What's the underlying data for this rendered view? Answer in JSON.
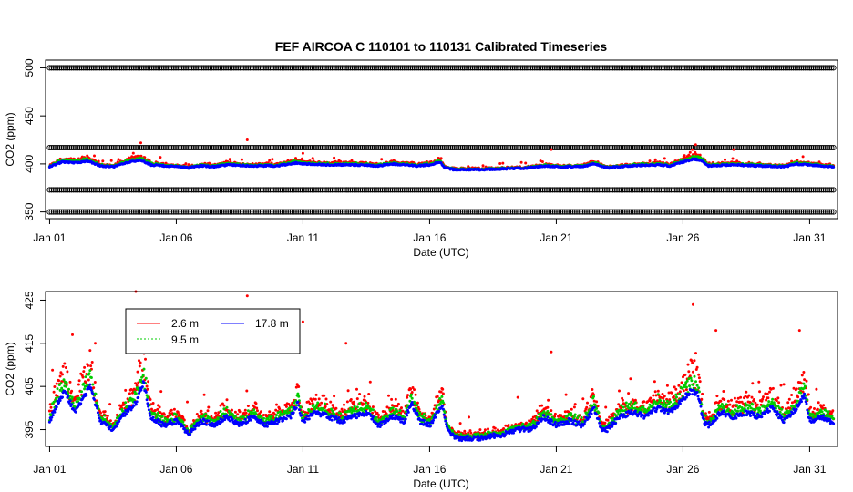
{
  "chart_data": [
    {
      "type": "scatter",
      "title": "FEF   AIRCOA  C    110101  to  110131   Calibrated Timeseries",
      "xlabel": "Date (UTC)",
      "ylabel": "CO2 (ppm)",
      "xlim": [
        "2011-01-01",
        "2011-01-32"
      ],
      "ylim": [
        350,
        500
      ],
      "x_tick_labels": [
        "Jan 01",
        "Jan 06",
        "Jan 11",
        "Jan 16",
        "Jan 21",
        "Jan 26",
        "Jan 31"
      ],
      "x_tick_days": [
        1,
        6,
        11,
        16,
        21,
        26,
        31
      ],
      "y_ticks": [
        350,
        400,
        450,
        500
      ],
      "y_tick_labels": [
        "350",
        "400",
        "450",
        "500"
      ],
      "grid": false,
      "reference_bands": [
        500,
        417,
        373,
        350
      ],
      "series": [
        {
          "name": "2.6 m",
          "color": "#ff0000"
        },
        {
          "name": "9.5 m",
          "color": "#00cc00"
        },
        {
          "name": "17.8 m",
          "color": "#0000ff"
        }
      ],
      "baseline_knots": [
        [
          1,
          397
        ],
        [
          1.5,
          402
        ],
        [
          2,
          401
        ],
        [
          2.5,
          403
        ],
        [
          3,
          398
        ],
        [
          3.5,
          397
        ],
        [
          4,
          401
        ],
        [
          4.6,
          404
        ],
        [
          5,
          399
        ],
        [
          6,
          397
        ],
        [
          6.5,
          396
        ],
        [
          7,
          398
        ],
        [
          7.5,
          397
        ],
        [
          8,
          399
        ],
        [
          9,
          398
        ],
        [
          10,
          398
        ],
        [
          10.7,
          401
        ],
        [
          11,
          400
        ],
        [
          12,
          399
        ],
        [
          13,
          399
        ],
        [
          14,
          398
        ],
        [
          14.5,
          400
        ],
        [
          15,
          399
        ],
        [
          15.5,
          398
        ],
        [
          16,
          399
        ],
        [
          16.4,
          402
        ],
        [
          16.6,
          396
        ],
        [
          17,
          394
        ],
        [
          18,
          394
        ],
        [
          19,
          395
        ],
        [
          20,
          396
        ],
        [
          20.6,
          398
        ],
        [
          21,
          397
        ],
        [
          22,
          397
        ],
        [
          22.5,
          400
        ],
        [
          23,
          396
        ],
        [
          24,
          398
        ],
        [
          25,
          399
        ],
        [
          25.5,
          398
        ],
        [
          26,
          402
        ],
        [
          26.4,
          405
        ],
        [
          26.7,
          404
        ],
        [
          27,
          398
        ],
        [
          28,
          399
        ],
        [
          29,
          398
        ],
        [
          30,
          397
        ],
        [
          30.5,
          400
        ],
        [
          31,
          399
        ],
        [
          31.4,
          398
        ],
        [
          32,
          397
        ]
      ],
      "spikes_2_6m": [
        [
          4.6,
          422
        ],
        [
          8.8,
          425
        ],
        [
          11,
          411
        ],
        [
          26.5,
          420
        ],
        [
          28,
          415
        ],
        [
          20.8,
          415
        ]
      ]
    },
    {
      "type": "scatter",
      "xlabel": "Date (UTC)",
      "ylabel": "CO2 (ppm)",
      "xlim": [
        "2011-01-01",
        "2011-01-32"
      ],
      "ylim": [
        392,
        426
      ],
      "x_tick_labels": [
        "Jan 01",
        "Jan 06",
        "Jan 11",
        "Jan 16",
        "Jan 21",
        "Jan 26",
        "Jan 31"
      ],
      "x_tick_days": [
        1,
        6,
        11,
        16,
        21,
        26,
        31
      ],
      "y_ticks": [
        395,
        405,
        415,
        425
      ],
      "y_tick_labels": [
        "395",
        "405",
        "415",
        "425"
      ],
      "grid": false,
      "legend_position": "top-left",
      "legend": [
        "2.6 m",
        "17.8 m",
        "9.5 m"
      ],
      "series": [
        {
          "name": "2.6 m",
          "color": "#ff0000"
        },
        {
          "name": "9.5 m",
          "color": "#00cc00"
        },
        {
          "name": "17.8 m",
          "color": "#0000ff"
        }
      ],
      "baseline_knots": [
        [
          1,
          397
        ],
        [
          1.3,
          401
        ],
        [
          1.6,
          404
        ],
        [
          2,
          399
        ],
        [
          2.3,
          402
        ],
        [
          2.6,
          405
        ],
        [
          3,
          397
        ],
        [
          3.5,
          395
        ],
        [
          4,
          399
        ],
        [
          4.4,
          401
        ],
        [
          4.7,
          406
        ],
        [
          5,
          398
        ],
        [
          5.5,
          396
        ],
        [
          6,
          397
        ],
        [
          6.5,
          394
        ],
        [
          7,
          397
        ],
        [
          7.5,
          396
        ],
        [
          8,
          398
        ],
        [
          8.5,
          396
        ],
        [
          9,
          398
        ],
        [
          9.5,
          396
        ],
        [
          10,
          397
        ],
        [
          10.5,
          398
        ],
        [
          10.8,
          401
        ],
        [
          11,
          397
        ],
        [
          11.5,
          399
        ],
        [
          12,
          398
        ],
        [
          12.5,
          397
        ],
        [
          13,
          398
        ],
        [
          13.5,
          399
        ],
        [
          14,
          396
        ],
        [
          14.5,
          398
        ],
        [
          15,
          397
        ],
        [
          15.3,
          401
        ],
        [
          15.6,
          397
        ],
        [
          16,
          396
        ],
        [
          16.5,
          401
        ],
        [
          16.7,
          395
        ],
        [
          17,
          393
        ],
        [
          18,
          393
        ],
        [
          19,
          394
        ],
        [
          19.5,
          395
        ],
        [
          20,
          395
        ],
        [
          20.5,
          398
        ],
        [
          21,
          396
        ],
        [
          21.5,
          397
        ],
        [
          22,
          396
        ],
        [
          22.5,
          400
        ],
        [
          22.8,
          395
        ],
        [
          23,
          395
        ],
        [
          23.5,
          398
        ],
        [
          24,
          399
        ],
        [
          24.5,
          398
        ],
        [
          25,
          400
        ],
        [
          25.5,
          399
        ],
        [
          26,
          402
        ],
        [
          26.3,
          404
        ],
        [
          26.6,
          403
        ],
        [
          26.8,
          397
        ],
        [
          27,
          396
        ],
        [
          27.5,
          399
        ],
        [
          28,
          398
        ],
        [
          28.5,
          399
        ],
        [
          29,
          398
        ],
        [
          29.5,
          400
        ],
        [
          30,
          397
        ],
        [
          30.5,
          400
        ],
        [
          30.8,
          403
        ],
        [
          31,
          397
        ],
        [
          31.5,
          398
        ],
        [
          32,
          396
        ]
      ],
      "spikes_2_6m": [
        [
          1.9,
          417
        ],
        [
          2.8,
          415
        ],
        [
          4.4,
          427
        ],
        [
          5.5,
          421
        ],
        [
          6.7,
          418
        ],
        [
          7.4,
          417
        ],
        [
          8,
          413
        ],
        [
          8.8,
          426
        ],
        [
          9.6,
          420
        ],
        [
          11,
          420
        ],
        [
          12.7,
          415
        ],
        [
          20.8,
          413
        ],
        [
          26.4,
          424
        ],
        [
          27.3,
          418
        ],
        [
          30.6,
          418
        ]
      ]
    }
  ]
}
